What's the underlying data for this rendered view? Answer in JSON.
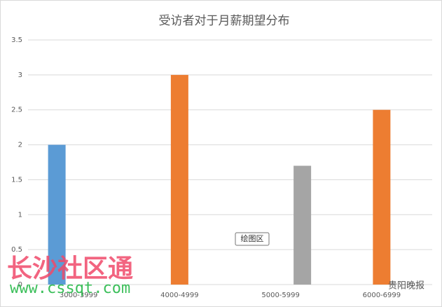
{
  "chart_data": {
    "type": "bar",
    "title": "受访者对于月薪期望分布",
    "categories": [
      "3000-3999",
      "4000-4999",
      "5000-5999",
      "6000-6999"
    ],
    "series": [
      {
        "color": "#5b9bd5",
        "values": [
          2,
          null,
          null,
          null
        ]
      },
      {
        "color": "#ed7d31",
        "values": [
          null,
          3,
          null,
          2.5
        ]
      },
      {
        "color": "#a5a5a5",
        "values": [
          null,
          null,
          1.7,
          null
        ]
      }
    ],
    "ylim": [
      0,
      3.5
    ],
    "yticks": [
      0,
      0.5,
      1,
      1.5,
      2,
      2.5,
      3,
      3.5
    ],
    "grid": true,
    "tooltip": "绘图区",
    "watermarks": [
      "长沙社区通",
      "www.cssqt.com",
      "贵阳晚报"
    ]
  }
}
